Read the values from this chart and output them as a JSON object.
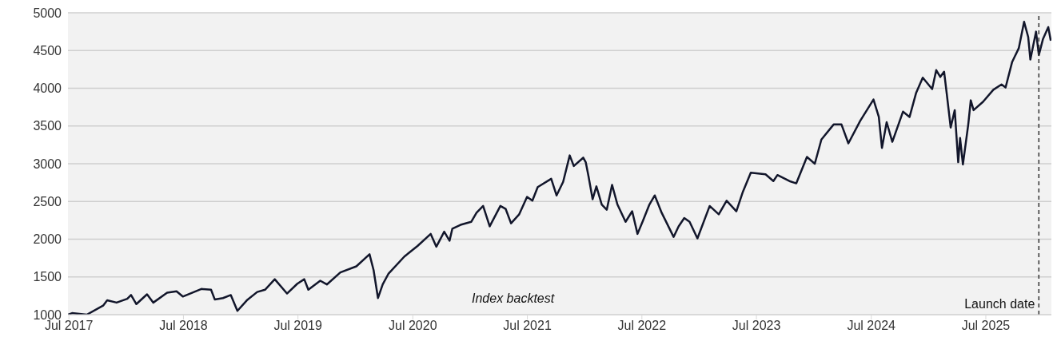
{
  "chart_data": {
    "type": "line",
    "annotations": [
      "Index backtest"
    ],
    "x": [
      "2017-06-29",
      "2017-07-11",
      "2017-08-27",
      "2017-10-18",
      "2017-10-31",
      "2017-11-30",
      "2018-01-03",
      "2018-01-15",
      "2018-02-01",
      "2018-03-07",
      "2018-03-27",
      "2018-05-10",
      "2018-06-09",
      "2018-06-29",
      "2018-08-27",
      "2018-09-27",
      "2018-10-09",
      "2018-11-04",
      "2018-11-29",
      "2018-12-20",
      "2019-01-19",
      "2019-02-21",
      "2019-03-18",
      "2019-04-18",
      "2019-05-27",
      "2019-06-29",
      "2019-07-21",
      "2019-08-03",
      "2019-09-10",
      "2019-10-01",
      "2019-11-13",
      "2020-01-03",
      "2020-02-14",
      "2020-02-27",
      "2020-03-12",
      "2020-03-27",
      "2020-04-14",
      "2020-06-04",
      "2020-07-16",
      "2020-08-27",
      "2020-09-14",
      "2020-10-09",
      "2020-10-26",
      "2020-11-04",
      "2020-11-30",
      "2021-01-03",
      "2021-01-20",
      "2021-02-10",
      "2021-03-03",
      "2021-04-06",
      "2021-04-23",
      "2021-05-10",
      "2021-06-05",
      "2021-06-30",
      "2021-07-17",
      "2021-08-03",
      "2021-09-15",
      "2021-10-02",
      "2021-10-23",
      "2021-11-13",
      "2021-11-26",
      "2021-12-26",
      "2022-01-03",
      "2022-01-12",
      "2022-01-25",
      "2022-02-06",
      "2022-02-23",
      "2022-03-11",
      "2022-03-28",
      "2022-04-14",
      "2022-05-10",
      "2022-05-31",
      "2022-06-17",
      "2022-07-04",
      "2022-07-25",
      "2022-08-11",
      "2022-09-02",
      "2022-10-10",
      "2022-10-26",
      "2022-11-13",
      "2022-11-30",
      "2022-12-25",
      "2023-02-02",
      "2023-03-03",
      "2023-03-28",
      "2023-04-28",
      "2023-05-19",
      "2023-06-13",
      "2023-07-30",
      "2023-08-24",
      "2023-09-06",
      "2023-10-14",
      "2023-11-05",
      "2023-12-09",
      "2024-01-03",
      "2024-01-24",
      "2024-03-03",
      "2024-03-28",
      "2024-04-19",
      "2024-05-27",
      "2024-07-08",
      "2024-07-25",
      "2024-08-04",
      "2024-08-19",
      "2024-09-06",
      "2024-10-10",
      "2024-10-31",
      "2024-11-21",
      "2024-12-12",
      "2025-01-11",
      "2025-01-24",
      "2025-02-06",
      "2025-02-18",
      "2025-02-27",
      "2025-03-11",
      "2025-03-24",
      "2025-04-04",
      "2025-04-10",
      "2025-04-19",
      "2025-05-06",
      "2025-05-14",
      "2025-05-23",
      "2025-06-22",
      "2025-07-25",
      "2025-08-20",
      "2025-09-02",
      "2025-09-23",
      "2025-10-14",
      "2025-10-31",
      "2025-11-13",
      "2025-11-20",
      "2025-12-08",
      "2025-12-17",
      "2025-12-30",
      "2026-01-16",
      "2026-01-24"
    ],
    "series": [
      {
        "color": "#12162b",
        "values": [
          1000,
          1020,
          1000,
          1120,
          1190,
          1160,
          1210,
          1260,
          1140,
          1270,
          1160,
          1290,
          1310,
          1240,
          1340,
          1330,
          1200,
          1220,
          1260,
          1050,
          1190,
          1300,
          1330,
          1470,
          1280,
          1410,
          1470,
          1330,
          1450,
          1400,
          1560,
          1640,
          1800,
          1590,
          1220,
          1400,
          1540,
          1770,
          1910,
          2070,
          1900,
          2100,
          1980,
          2140,
          2190,
          2230,
          2350,
          2440,
          2170,
          2440,
          2400,
          2210,
          2330,
          2560,
          2510,
          2690,
          2800,
          2580,
          2760,
          3110,
          2970,
          3080,
          3020,
          2830,
          2530,
          2700,
          2460,
          2390,
          2720,
          2460,
          2230,
          2370,
          2070,
          2240,
          2460,
          2580,
          2350,
          2030,
          2170,
          2280,
          2230,
          2010,
          2440,
          2330,
          2510,
          2370,
          2630,
          2880,
          2860,
          2770,
          2850,
          2770,
          2740,
          3090,
          3000,
          3320,
          3520,
          3520,
          3270,
          3570,
          3850,
          3620,
          3210,
          3550,
          3290,
          3690,
          3620,
          3940,
          4140,
          3990,
          4240,
          4150,
          4220,
          3910,
          3480,
          3710,
          3020,
          3340,
          2990,
          3520,
          3840,
          3710,
          3820,
          3980,
          4050,
          4010,
          4350,
          4530,
          4880,
          4680,
          4380,
          4750,
          4440,
          4650,
          4810,
          4630
        ]
      }
    ],
    "xlim": [
      "2017-06-28",
      "2026-01-26"
    ],
    "xticks": [
      {
        "value": "2017-07-01",
        "label": "Jul 2017"
      },
      {
        "value": "2018-07-01",
        "label": "Jul 2018"
      },
      {
        "value": "2019-07-01",
        "label": "Jul 2019"
      },
      {
        "value": "2020-07-01",
        "label": "Jul 2020"
      },
      {
        "value": "2021-07-01",
        "label": "Jul 2021"
      },
      {
        "value": "2022-07-01",
        "label": "Jul 2022"
      },
      {
        "value": "2023-07-01",
        "label": "Jul 2023"
      },
      {
        "value": "2024-07-01",
        "label": "Jul 2024"
      },
      {
        "value": "2025-07-01",
        "label": "Jul 2025"
      }
    ],
    "ylim": [
      1000,
      5000
    ],
    "yticks": [
      1000,
      1500,
      2000,
      2500,
      3000,
      3500,
      4000,
      4500,
      5000
    ],
    "grid": "y",
    "legend": false,
    "marker": "none",
    "line_style": "solid",
    "ref_lines": [
      {
        "axis": "x",
        "value": "2025-12-17",
        "label": "Launch date",
        "color": "#333333",
        "line_style": "dashed"
      }
    ]
  }
}
